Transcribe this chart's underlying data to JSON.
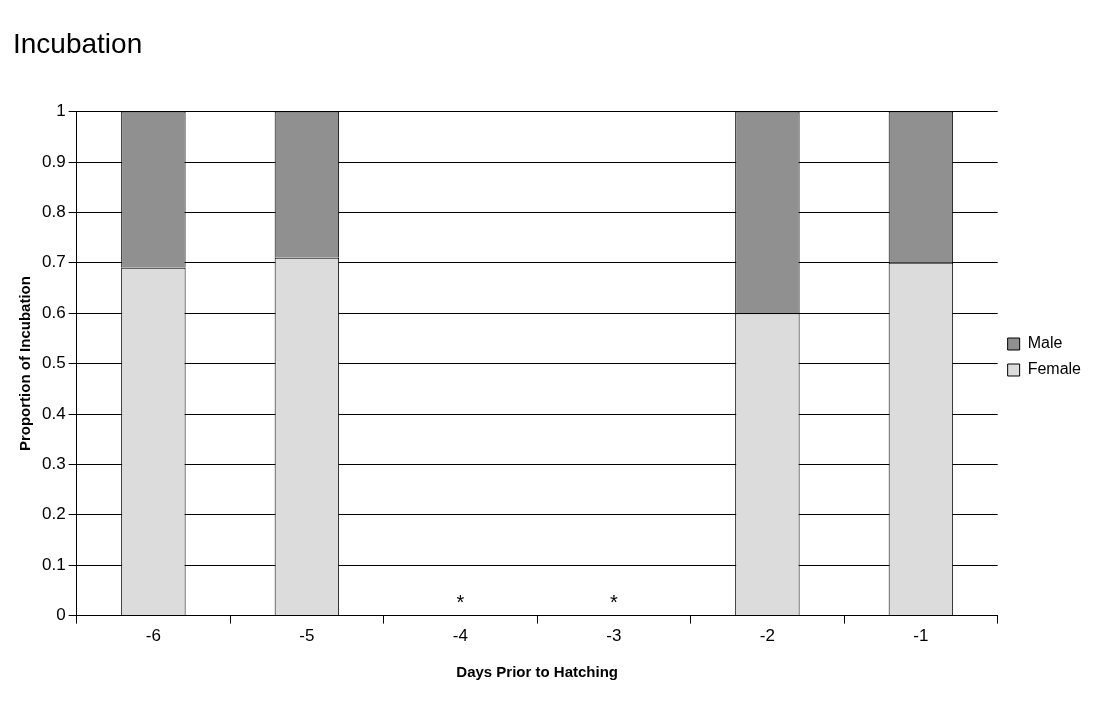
{
  "chart_data": {
    "type": "bar",
    "title": "Incubation",
    "xlabel": "Days Prior to Hatching",
    "ylabel": "Proportion of Incubation",
    "categories": [
      "-6",
      "-5",
      "-4",
      "-3",
      "-2",
      "-1"
    ],
    "stacked": true,
    "series": [
      {
        "name": "Female",
        "color": "#dcdcdc",
        "values": [
          0.69,
          0.71,
          null,
          null,
          0.6,
          0.7
        ]
      },
      {
        "name": "Male",
        "color": "#909090",
        "values": [
          0.31,
          0.29,
          null,
          null,
          0.4,
          0.3
        ]
      }
    ],
    "ylim": [
      0,
      1
    ],
    "yticks": [
      0,
      0.1,
      0.2,
      0.3,
      0.4,
      0.5,
      0.6,
      0.7,
      0.8,
      0.9,
      1
    ],
    "grid": "y",
    "legend": "right",
    "annotations": [
      "*",
      "*"
    ]
  }
}
